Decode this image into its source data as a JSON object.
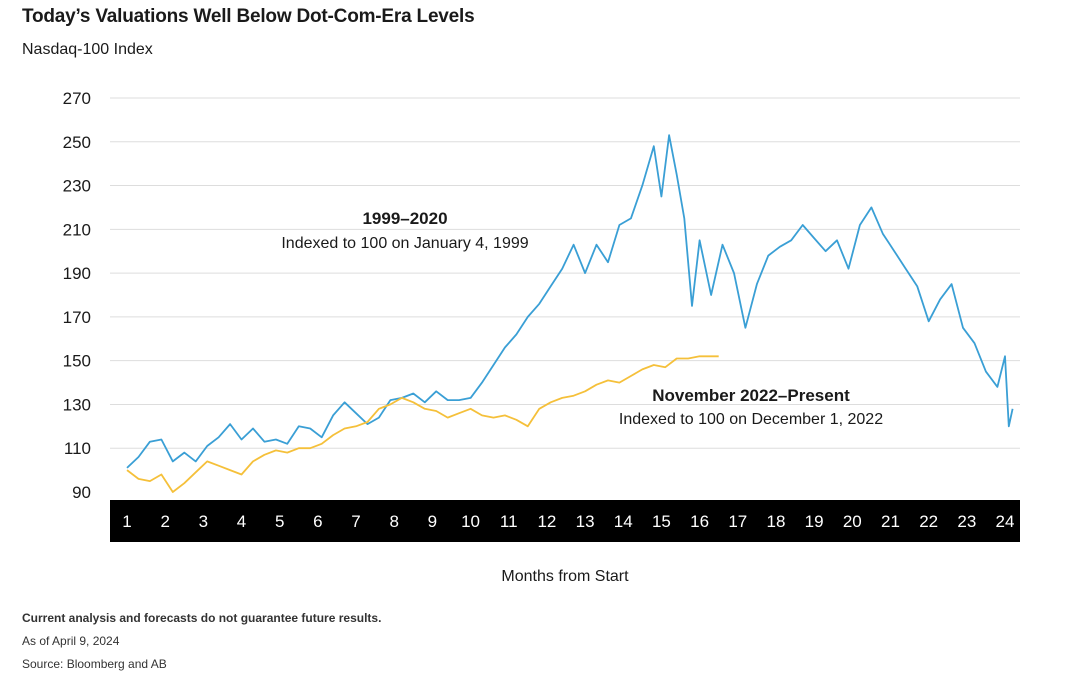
{
  "header": {
    "title": "Today’s Valuations Well Below Dot-Com-Era Levels",
    "subtitle": "Nasdaq-100 Index"
  },
  "footer": {
    "disclaimer": "Current analysis and forecasts do not guarantee future results.",
    "as_of": "As of April 9, 2024",
    "source": "Source: Bloomberg and AB"
  },
  "colors": {
    "series_1999": "#3a9fd5",
    "series_2022": "#f5c03a",
    "axis_band": "#000000",
    "gridline": "#dddddd"
  },
  "chart_data": {
    "type": "line",
    "title": "Today’s Valuations Well Below Dot-Com-Era Levels",
    "subtitle": "Nasdaq-100 Index",
    "xlabel": "Months from Start",
    "ylabel": "",
    "xlim": [
      1,
      24
    ],
    "ylim": [
      90,
      270
    ],
    "yticks": [
      90,
      110,
      130,
      150,
      170,
      190,
      210,
      230,
      250,
      270
    ],
    "xticks": [
      1,
      2,
      3,
      4,
      5,
      6,
      7,
      8,
      9,
      10,
      11,
      12,
      13,
      14,
      15,
      16,
      17,
      18,
      19,
      20,
      21,
      22,
      23,
      24
    ],
    "grid": true,
    "series": [
      {
        "name": "1999–2020",
        "annotation_title": "1999–2020",
        "annotation_text": "Indexed to 100 on January 4, 1999",
        "x": [
          1.0,
          1.3,
          1.6,
          1.9,
          2.2,
          2.5,
          2.8,
          3.1,
          3.4,
          3.7,
          4.0,
          4.3,
          4.6,
          4.9,
          5.2,
          5.5,
          5.8,
          6.1,
          6.4,
          6.7,
          7.0,
          7.3,
          7.6,
          7.9,
          8.2,
          8.5,
          8.8,
          9.1,
          9.4,
          9.7,
          10.0,
          10.3,
          10.6,
          10.9,
          11.2,
          11.5,
          11.8,
          12.1,
          12.4,
          12.7,
          13.0,
          13.3,
          13.6,
          13.9,
          14.2,
          14.5,
          14.8,
          15.0,
          15.2,
          15.4,
          15.6,
          15.8,
          16.0,
          16.3,
          16.6,
          16.9,
          17.2,
          17.5,
          17.8,
          18.1,
          18.4,
          18.7,
          19.0,
          19.3,
          19.6,
          19.9,
          20.2,
          20.5,
          20.8,
          21.1,
          21.4,
          21.7,
          22.0,
          22.3,
          22.6,
          22.9,
          23.2,
          23.5,
          23.8,
          24.0,
          24.1,
          24.2
        ],
        "values": [
          101,
          106,
          113,
          114,
          104,
          108,
          104,
          111,
          115,
          121,
          114,
          119,
          113,
          114,
          112,
          120,
          119,
          115,
          125,
          131,
          126,
          121,
          124,
          132,
          133,
          135,
          131,
          136,
          132,
          132,
          133,
          140,
          148,
          156,
          162,
          170,
          176,
          184,
          192,
          203,
          190,
          203,
          195,
          212,
          215,
          230,
          248,
          225,
          253,
          235,
          215,
          175,
          205,
          180,
          203,
          190,
          165,
          185,
          198,
          202,
          205,
          212,
          206,
          200,
          205,
          192,
          212,
          220,
          208,
          200,
          192,
          184,
          168,
          178,
          185,
          165,
          158,
          145,
          138,
          152,
          120,
          128
        ]
      },
      {
        "name": "November 2022–Present",
        "annotation_title": "November 2022–Present",
        "annotation_text": "Indexed to 100 on December 1, 2022",
        "x": [
          1.0,
          1.3,
          1.6,
          1.9,
          2.2,
          2.5,
          2.8,
          3.1,
          3.4,
          3.7,
          4.0,
          4.3,
          4.6,
          4.9,
          5.2,
          5.5,
          5.8,
          6.1,
          6.4,
          6.7,
          7.0,
          7.3,
          7.6,
          7.9,
          8.2,
          8.5,
          8.8,
          9.1,
          9.4,
          9.7,
          10.0,
          10.3,
          10.6,
          10.9,
          11.2,
          11.5,
          11.8,
          12.1,
          12.4,
          12.7,
          13.0,
          13.3,
          13.6,
          13.9,
          14.2,
          14.5,
          14.8,
          15.1,
          15.4,
          15.7,
          16.0,
          16.3,
          16.5
        ],
        "values": [
          100,
          96,
          95,
          98,
          90,
          94,
          99,
          104,
          102,
          100,
          98,
          104,
          107,
          109,
          108,
          110,
          110,
          112,
          116,
          119,
          120,
          122,
          128,
          130,
          133,
          131,
          128,
          127,
          124,
          126,
          128,
          125,
          124,
          125,
          123,
          120,
          128,
          131,
          133,
          134,
          136,
          139,
          141,
          140,
          143,
          146,
          148,
          147,
          151,
          151,
          152,
          152,
          152
        ]
      }
    ]
  }
}
